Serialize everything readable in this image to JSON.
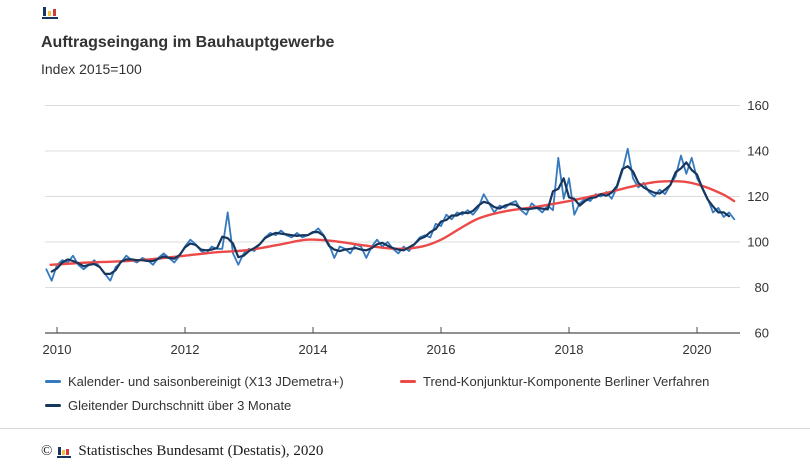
{
  "header": {
    "title": "Auftragseingang im Bauhauptgewerbe",
    "subtitle": "Index 2015=100"
  },
  "icons": {
    "top_left": "destatis-bar-chart-icon",
    "footer": "destatis-bar-chart-icon"
  },
  "colors": {
    "seasonal_adjusted": "#3579be",
    "trend": "#ec4a49",
    "moving_average": "#17365d",
    "grid": "#dcdcdc",
    "axis": "#4d4d4d",
    "text": "#333333"
  },
  "chart_data": {
    "type": "line",
    "title": "Auftragseingang im Bauhauptgewerbe",
    "subtitle": "Index 2015=100",
    "xlabel": "",
    "ylabel": "",
    "x_ticks": [
      2010,
      2012,
      2014,
      2016,
      2018,
      2020
    ],
    "y_ticks": [
      60,
      80,
      100,
      120,
      140,
      160
    ],
    "ylim": [
      60,
      168
    ],
    "xlim": [
      2009.8,
      2020.7
    ],
    "grid": true,
    "legend_position": "bottom-left",
    "y_axis_side": "right",
    "series": [
      {
        "name": "Kalender- und saisonbereinigt (X13 JDemetra+)",
        "color": "#3579be",
        "frequency": "monthly",
        "start_year": 2009,
        "start_month": 11,
        "values": [
          88,
          83,
          90,
          92,
          91,
          94,
          90,
          88,
          90,
          92,
          89,
          86,
          83,
          89,
          91,
          94,
          92,
          91,
          93,
          92,
          90,
          93,
          95,
          93,
          91,
          94,
          98,
          101,
          99,
          96,
          95,
          98,
          97,
          97,
          113,
          95,
          90,
          95,
          97,
          96,
          99,
          102,
          104,
          103,
          105,
          103,
          102,
          104,
          102,
          103,
          104,
          106,
          103,
          99,
          93,
          98,
          97,
          95,
          99,
          98,
          93,
          98,
          101,
          98,
          100,
          97,
          95,
          98,
          96,
          99,
          102,
          103,
          102,
          108,
          107,
          112,
          110,
          113,
          112,
          114,
          112,
          115,
          121,
          117,
          113,
          116,
          115,
          117,
          118,
          114,
          112,
          117,
          115,
          113,
          116,
          114,
          137,
          119,
          128,
          112,
          117,
          119,
          118,
          121,
          120,
          122,
          119,
          124,
          131,
          141,
          128,
          124,
          126,
          122,
          120,
          123,
          121,
          125,
          129,
          138,
          130,
          137,
          128,
          124,
          119,
          113,
          115,
          111,
          113,
          110
        ]
      },
      {
        "name": "Trend-Konjunktur-Komponente Berliner Verfahren",
        "color": "#ec4a49",
        "frequency": "anchor-points",
        "points": [
          [
            2009.9,
            90
          ],
          [
            2010.5,
            91
          ],
          [
            2011.0,
            91.5
          ],
          [
            2011.5,
            92.5
          ],
          [
            2012.0,
            94
          ],
          [
            2012.5,
            95.5
          ],
          [
            2013.0,
            96.5
          ],
          [
            2013.5,
            99
          ],
          [
            2013.9,
            101
          ],
          [
            2014.3,
            100.5
          ],
          [
            2014.8,
            98.5
          ],
          [
            2015.3,
            97
          ],
          [
            2015.7,
            98
          ],
          [
            2016.0,
            101
          ],
          [
            2016.3,
            106
          ],
          [
            2016.6,
            110.5
          ],
          [
            2017.0,
            113.5
          ],
          [
            2017.5,
            115.5
          ],
          [
            2018.0,
            118
          ],
          [
            2018.5,
            121
          ],
          [
            2019.0,
            124.5
          ],
          [
            2019.4,
            126.5
          ],
          [
            2019.8,
            126.5
          ],
          [
            2020.1,
            124.5
          ],
          [
            2020.4,
            121
          ],
          [
            2020.58,
            118
          ]
        ]
      },
      {
        "name": "Gleitender Durchschnitt über 3 Monate",
        "color": "#17365d",
        "frequency": "monthly",
        "derived_from": "3-month centered moving average of series 0"
      }
    ]
  },
  "footer": {
    "symbol": "©",
    "text": "Statistisches Bundesamt (Destatis), 2020"
  }
}
